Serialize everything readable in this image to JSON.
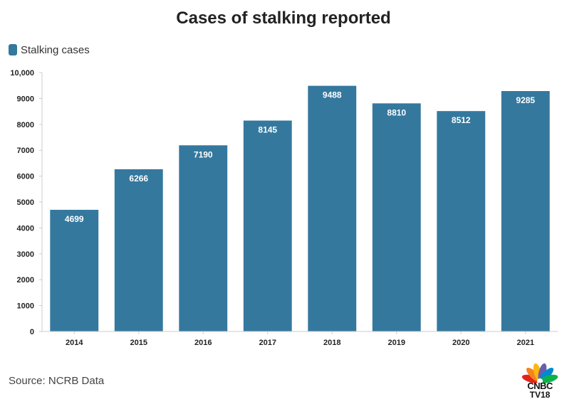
{
  "chart_data": {
    "type": "bar",
    "title": "Cases of stalking reported",
    "categories": [
      "2014",
      "2015",
      "2016",
      "2017",
      "2018",
      "2019",
      "2020",
      "2021"
    ],
    "series": [
      {
        "name": "Stalking cases",
        "values": [
          4699,
          6266,
          7190,
          8145,
          9488,
          8810,
          8512,
          9285
        ]
      }
    ],
    "data_labels": [
      "4699",
      "6266",
      "7190",
      "8145",
      "9488",
      "8810",
      "8512",
      "9285"
    ],
    "y_ticks": [
      0,
      1000,
      2000,
      3000,
      4000,
      5000,
      6000,
      7000,
      8000,
      9000,
      10000
    ],
    "y_tick_labels": [
      "0",
      "1000",
      "2000",
      "3000",
      "4000",
      "5000",
      "6000",
      "7000",
      "8000",
      "9000",
      "10,000"
    ],
    "ylim": [
      0,
      10000
    ],
    "xlabel": "",
    "ylabel": "",
    "grid": false,
    "legend_position": "top-left",
    "bar_color": "#34789e"
  },
  "footer": {
    "source": "Source: NCRB Data",
    "logo_text": "CNBC",
    "logo_subtext": "TV18"
  }
}
